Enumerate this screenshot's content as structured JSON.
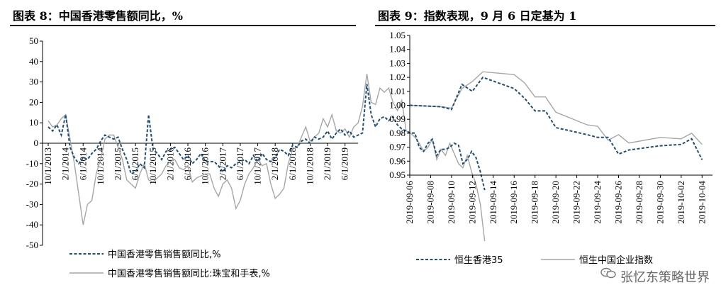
{
  "charts": {
    "left_title": "图表 8：中国香港零售额同比，%",
    "right_title": "图表 9：指数表现，9 月 6 日定基为 1"
  },
  "watermark": {
    "text": "张忆东策略世界",
    "icon": "wechat-icon"
  },
  "chart_data": [
    {
      "type": "line",
      "title": "图表 8：中国香港零售额同比，%",
      "xlabel": "",
      "ylabel": "",
      "ylim": [
        -50,
        50
      ],
      "yticks": [
        50,
        40,
        30,
        20,
        10,
        0,
        -10,
        -20,
        -30,
        -40,
        -50
      ],
      "x_tick_labels": [
        "10/1/2013",
        "2/1/2014",
        "6/1/2014",
        "10/1/2014",
        "2/1/2015",
        "6/1/2015",
        "10/1/2015",
        "2/1/2016",
        "6/1/2016",
        "10/1/2016",
        "2/1/2017",
        "6/1/2017",
        "10/1/2017",
        "2/1/2018",
        "6/1/2018",
        "10/1/2018",
        "2/1/2019",
        "6/1/2019"
      ],
      "x_start": "2013-10",
      "x_end": "2019-08",
      "legend_position": "bottom",
      "series": [
        {
          "name": "中国香港零售销售额同比,%",
          "style": "dashed",
          "color": "#1F4E79",
          "values": [
            8,
            6,
            9,
            4,
            14,
            -2,
            -7,
            -10,
            -7,
            -8,
            -5,
            -3,
            1,
            4,
            3,
            2,
            3,
            -3,
            -8,
            -15,
            -14,
            -10,
            -12,
            14,
            -3,
            -5,
            -8,
            -4,
            -3,
            -2,
            -5,
            -8,
            -6,
            -10,
            -8,
            -5,
            -9,
            -9,
            -9,
            -11,
            -14,
            -11,
            -12,
            -10,
            -9,
            -8,
            -10,
            -6,
            -9,
            -5,
            -8,
            -9,
            -7,
            -3,
            -4,
            -6,
            -1,
            -2,
            1,
            2,
            0,
            3,
            2,
            3,
            6,
            2,
            5,
            7,
            4,
            6,
            3,
            4,
            5,
            29,
            14,
            8,
            12,
            13,
            11,
            13,
            9,
            7,
            6,
            5,
            5,
            -2,
            -4,
            0,
            2,
            -6,
            -3,
            -3,
            -2,
            0,
            -1,
            -10,
            -8,
            -4,
            -7,
            -14,
            -23
          ]
        },
        {
          "name": "中国香港零售销售额同比:珠宝和手表,%",
          "style": "solid",
          "color": "#A6A6A6",
          "values": [
            11,
            8,
            9,
            12,
            14,
            2,
            -10,
            -25,
            -40,
            -30,
            -28,
            -15,
            -8,
            2,
            4,
            4,
            -2,
            -8,
            -18,
            -20,
            -22,
            -15,
            -10,
            -18,
            -19,
            -17,
            -15,
            -11,
            -9,
            -8,
            -12,
            -13,
            -11,
            -19,
            -17,
            -16,
            -15,
            -15,
            -22,
            -26,
            -20,
            -18,
            -22,
            -32,
            -28,
            -20,
            -15,
            -12,
            -8,
            -11,
            -10,
            -20,
            -27,
            -25,
            -22,
            -10,
            -3,
            -2,
            3,
            8,
            1,
            3,
            5,
            12,
            8,
            14,
            6,
            5,
            7,
            3,
            8,
            10,
            18,
            34,
            20,
            19,
            27,
            25,
            27,
            20,
            16,
            21,
            6,
            5,
            3,
            0,
            -4,
            -2,
            2,
            -8,
            -3,
            -6,
            0,
            -5,
            -10,
            -12,
            -6,
            -14,
            -20,
            -30,
            -48
          ]
        }
      ]
    },
    {
      "type": "line",
      "title": "图表 9：指数表现，9 月 6 日定基为 1",
      "xlabel": "",
      "ylabel": "",
      "ylim": [
        0.95,
        1.05
      ],
      "yticks": [
        "1.05",
        "1.04",
        "1.03",
        "1.02",
        "1.01",
        "1.00",
        "0.99",
        "0.98",
        "0.97",
        "0.96",
        "0.95"
      ],
      "x_tick_labels": [
        "2019-09-06",
        "2019-09-08",
        "2019-09-10",
        "2019-09-12",
        "2019-09-14",
        "2019-09-16",
        "2019-09-18",
        "2019-09-20",
        "2019-09-22",
        "2019-09-24",
        "2019-09-26",
        "2019-09-28",
        "2019-09-30",
        "2019-10-02",
        "2019-10-04"
      ],
      "x_start": "2019-09-06",
      "x_end": "2019-10-05",
      "legend_position": "bottom",
      "series": [
        {
          "name": "恒生香港35",
          "style": "dashed",
          "color": "#1F4E79",
          "x": [
            "2019-09-06",
            "2019-09-09",
            "2019-09-10",
            "2019-09-11",
            "2019-09-12",
            "2019-09-13",
            "2019-09-16",
            "2019-09-17",
            "2019-09-18",
            "2019-09-19",
            "2019-09-20",
            "2019-09-23",
            "2019-09-24",
            "2019-09-25",
            "2019-09-26",
            "2019-09-27",
            "2019-09-30",
            "2019-10-02",
            "2019-10-03",
            "2019-10-04"
          ],
          "values": [
            1.0,
            0.999,
            0.997,
            1.015,
            1.01,
            1.02,
            1.012,
            1.005,
            0.996,
            0.996,
            0.984,
            0.979,
            0.977,
            0.977,
            0.965,
            0.968,
            0.971,
            0.972,
            0.976,
            0.961
          ]
        },
        {
          "name": "恒生中国企业指数",
          "style": "solid",
          "color": "#A6A6A6",
          "x": [
            "2019-09-06",
            "2019-09-09",
            "2019-09-10",
            "2019-09-11",
            "2019-09-12",
            "2019-09-13",
            "2019-09-16",
            "2019-09-17",
            "2019-09-18",
            "2019-09-19",
            "2019-09-20",
            "2019-09-23",
            "2019-09-24",
            "2019-09-25",
            "2019-09-26",
            "2019-09-27",
            "2019-09-30",
            "2019-10-02",
            "2019-10-03",
            "2019-10-04"
          ],
          "values": [
            1.0,
            0.999,
            0.998,
            1.012,
            1.017,
            1.024,
            1.022,
            1.016,
            1.006,
            1.006,
            0.995,
            0.986,
            0.985,
            0.975,
            0.979,
            0.973,
            0.977,
            0.976,
            0.98,
            0.972
          ]
        }
      ]
    }
  ]
}
